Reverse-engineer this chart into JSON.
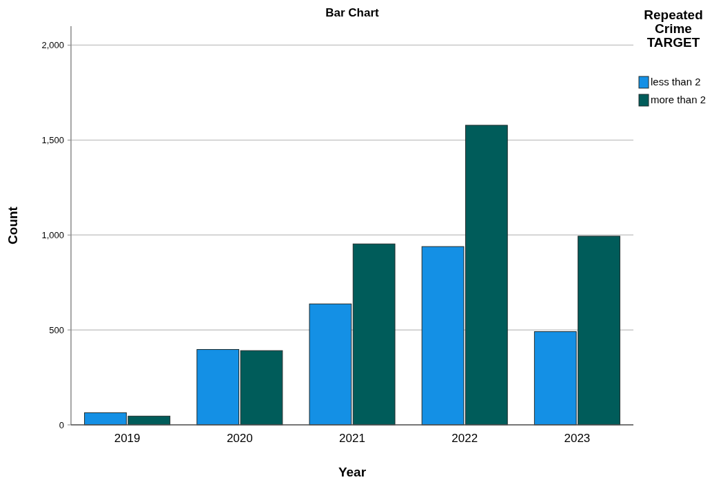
{
  "chart_data": {
    "type": "bar",
    "title": "Bar Chart",
    "xlabel": "Year",
    "ylabel": "Count",
    "legend_title": "Repeated Crime TARGET",
    "categories": [
      "2019",
      "2020",
      "2021",
      "2022",
      "2023"
    ],
    "series": [
      {
        "name": "less than 2",
        "color": "#1490e5",
        "values": [
          64,
          397,
          637,
          939,
          491
        ]
      },
      {
        "name": "more than 2",
        "color": "#005c5a",
        "values": [
          46,
          391,
          953,
          1578,
          994
        ]
      }
    ],
    "ylim": [
      0,
      2100
    ],
    "yticks": [
      {
        "value": 0,
        "label": "0"
      },
      {
        "value": 500,
        "label": "500"
      },
      {
        "value": 1000,
        "label": "1,000"
      },
      {
        "value": 1500,
        "label": "1,500"
      },
      {
        "value": 2000,
        "label": "2,000"
      }
    ],
    "grid": "y",
    "legend": "top right"
  }
}
